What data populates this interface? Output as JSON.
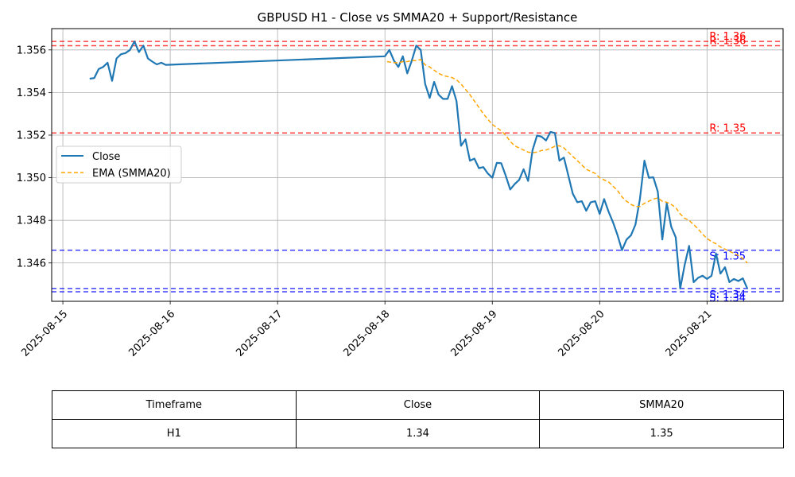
{
  "chart_data": {
    "type": "line",
    "title": "GBPUSD H1 - Close vs SMMA20 + Support/Resistance",
    "xlabel": "",
    "ylabel": "",
    "grid": true,
    "legend_placement": "center-left",
    "x_ticks": [
      "2025-08-15",
      "2025-08-16",
      "2025-08-17",
      "2025-08-18",
      "2025-08-19",
      "2025-08-20",
      "2025-08-21"
    ],
    "y_ticks": [
      "1.346",
      "1.348",
      "1.350",
      "1.352",
      "1.354",
      "1.356"
    ],
    "xlim": [
      "2025-08-14 21:30",
      "2025-08-21 17:00"
    ],
    "ylim": [
      1.3442,
      1.357
    ],
    "series": [
      {
        "name": "Close",
        "color": "#1f77b4",
        "style": "solid",
        "points": [
          [
            "2025-08-15 06:00",
            1.35465
          ],
          [
            "2025-08-15 07:00",
            1.35468
          ],
          [
            "2025-08-15 08:00",
            1.3551
          ],
          [
            "2025-08-15 09:00",
            1.3552
          ],
          [
            "2025-08-15 10:00",
            1.3554
          ],
          [
            "2025-08-15 11:00",
            1.35455
          ],
          [
            "2025-08-15 12:00",
            1.3556
          ],
          [
            "2025-08-15 13:00",
            1.3558
          ],
          [
            "2025-08-15 14:00",
            1.35585
          ],
          [
            "2025-08-15 15:00",
            1.356
          ],
          [
            "2025-08-15 16:00",
            1.3564
          ],
          [
            "2025-08-15 17:00",
            1.3559
          ],
          [
            "2025-08-15 18:00",
            1.3562
          ],
          [
            "2025-08-15 19:00",
            1.3556
          ],
          [
            "2025-08-15 20:00",
            1.35545
          ],
          [
            "2025-08-15 21:00",
            1.35532
          ],
          [
            "2025-08-15 22:00",
            1.3554
          ],
          [
            "2025-08-15 23:00",
            1.3553
          ],
          [
            "2025-08-18 00:00",
            1.3557
          ],
          [
            "2025-08-18 01:00",
            1.356
          ],
          [
            "2025-08-18 02:00",
            1.3555
          ],
          [
            "2025-08-18 03:00",
            1.3552
          ],
          [
            "2025-08-18 04:00",
            1.3557
          ],
          [
            "2025-08-18 05:00",
            1.3549
          ],
          [
            "2025-08-18 06:00",
            1.3555
          ],
          [
            "2025-08-18 07:00",
            1.3562
          ],
          [
            "2025-08-18 08:00",
            1.356
          ],
          [
            "2025-08-18 09:00",
            1.3544
          ],
          [
            "2025-08-18 10:00",
            1.35375
          ],
          [
            "2025-08-18 11:00",
            1.3545
          ],
          [
            "2025-08-18 12:00",
            1.3539
          ],
          [
            "2025-08-18 13:00",
            1.3537
          ],
          [
            "2025-08-18 14:00",
            1.3537
          ],
          [
            "2025-08-18 15:00",
            1.3543
          ],
          [
            "2025-08-18 16:00",
            1.3536
          ],
          [
            "2025-08-18 17:00",
            1.3515
          ],
          [
            "2025-08-18 18:00",
            1.3518
          ],
          [
            "2025-08-18 19:00",
            1.3508
          ],
          [
            "2025-08-18 20:00",
            1.3509
          ],
          [
            "2025-08-18 21:00",
            1.35045
          ],
          [
            "2025-08-18 22:00",
            1.3505
          ],
          [
            "2025-08-18 23:00",
            1.3502
          ],
          [
            "2025-08-19 00:00",
            1.35
          ],
          [
            "2025-08-19 01:00",
            1.3507
          ],
          [
            "2025-08-19 02:00",
            1.35068
          ],
          [
            "2025-08-19 03:00",
            1.3501
          ],
          [
            "2025-08-19 04:00",
            1.34945
          ],
          [
            "2025-08-19 05:00",
            1.3497
          ],
          [
            "2025-08-19 06:00",
            1.3499
          ],
          [
            "2025-08-19 07:00",
            1.3504
          ],
          [
            "2025-08-19 08:00",
            1.34985
          ],
          [
            "2025-08-19 09:00",
            1.3513
          ],
          [
            "2025-08-19 10:00",
            1.35198
          ],
          [
            "2025-08-19 11:00",
            1.35193
          ],
          [
            "2025-08-19 12:00",
            1.35175
          ],
          [
            "2025-08-19 13:00",
            1.35215
          ],
          [
            "2025-08-19 14:00",
            1.3521
          ],
          [
            "2025-08-19 15:00",
            1.3508
          ],
          [
            "2025-08-19 16:00",
            1.35095
          ],
          [
            "2025-08-19 17:00",
            1.3501
          ],
          [
            "2025-08-19 18:00",
            1.34925
          ],
          [
            "2025-08-19 19:00",
            1.34885
          ],
          [
            "2025-08-19 20:00",
            1.3489
          ],
          [
            "2025-08-19 21:00",
            1.34845
          ],
          [
            "2025-08-19 22:00",
            1.34885
          ],
          [
            "2025-08-19 23:00",
            1.3489
          ],
          [
            "2025-08-20 00:00",
            1.3483
          ],
          [
            "2025-08-20 01:00",
            1.349
          ],
          [
            "2025-08-20 02:00",
            1.3484
          ],
          [
            "2025-08-20 03:00",
            1.3479
          ],
          [
            "2025-08-20 04:00",
            1.3473
          ],
          [
            "2025-08-20 05:00",
            1.3466
          ],
          [
            "2025-08-20 06:00",
            1.3471
          ],
          [
            "2025-08-20 07:00",
            1.3473
          ],
          [
            "2025-08-20 08:00",
            1.3478
          ],
          [
            "2025-08-20 09:00",
            1.349
          ],
          [
            "2025-08-20 10:00",
            1.3508
          ],
          [
            "2025-08-20 11:00",
            1.35
          ],
          [
            "2025-08-20 12:00",
            1.35002
          ],
          [
            "2025-08-20 13:00",
            1.34935
          ],
          [
            "2025-08-20 14:00",
            1.3471
          ],
          [
            "2025-08-20 15:00",
            1.3488
          ],
          [
            "2025-08-20 16:00",
            1.3477
          ],
          [
            "2025-08-20 17:00",
            1.3472
          ],
          [
            "2025-08-20 18:00",
            1.3448
          ],
          [
            "2025-08-20 19:00",
            1.3459
          ],
          [
            "2025-08-20 20:00",
            1.3468
          ],
          [
            "2025-08-20 21:00",
            1.3451
          ],
          [
            "2025-08-20 22:00",
            1.3453
          ],
          [
            "2025-08-20 23:00",
            1.3454
          ],
          [
            "2025-08-21 00:00",
            1.34525
          ],
          [
            "2025-08-21 01:00",
            1.3454
          ],
          [
            "2025-08-21 02:00",
            1.34645
          ],
          [
            "2025-08-21 03:00",
            1.3455
          ],
          [
            "2025-08-21 04:00",
            1.3458
          ],
          [
            "2025-08-21 05:00",
            1.3451
          ],
          [
            "2025-08-21 06:00",
            1.34525
          ],
          [
            "2025-08-21 07:00",
            1.34515
          ],
          [
            "2025-08-21 08:00",
            1.34528
          ],
          [
            "2025-08-21 09:00",
            1.3448
          ]
        ]
      },
      {
        "name": "EMA (SMMA20)",
        "color": "#ffa500",
        "style": "dashed",
        "points": [
          [
            "2025-08-18 00:30",
            1.35545
          ],
          [
            "2025-08-18 02:00",
            1.3554
          ],
          [
            "2025-08-18 03:00",
            1.3554
          ],
          [
            "2025-08-18 04:00",
            1.35545
          ],
          [
            "2025-08-18 05:00",
            1.35545
          ],
          [
            "2025-08-18 06:00",
            1.3555
          ],
          [
            "2025-08-18 07:00",
            1.3555
          ],
          [
            "2025-08-18 08:00",
            1.35555
          ],
          [
            "2025-08-18 09:00",
            1.3553
          ],
          [
            "2025-08-18 10:00",
            1.3552
          ],
          [
            "2025-08-18 11:00",
            1.35505
          ],
          [
            "2025-08-18 12:00",
            1.3549
          ],
          [
            "2025-08-18 13:00",
            1.3548
          ],
          [
            "2025-08-18 14:00",
            1.35475
          ],
          [
            "2025-08-18 15:00",
            1.3547
          ],
          [
            "2025-08-18 16:00",
            1.3546
          ],
          [
            "2025-08-18 17:00",
            1.3544
          ],
          [
            "2025-08-18 18:00",
            1.35415
          ],
          [
            "2025-08-18 19:00",
            1.3539
          ],
          [
            "2025-08-18 20:00",
            1.3536
          ],
          [
            "2025-08-18 21:00",
            1.3533
          ],
          [
            "2025-08-18 22:00",
            1.353
          ],
          [
            "2025-08-18 23:00",
            1.35275
          ],
          [
            "2025-08-19 00:00",
            1.3525
          ],
          [
            "2025-08-19 01:00",
            1.35235
          ],
          [
            "2025-08-19 02:00",
            1.3522
          ],
          [
            "2025-08-19 03:00",
            1.352
          ],
          [
            "2025-08-19 04:00",
            1.3517
          ],
          [
            "2025-08-19 05:00",
            1.3515
          ],
          [
            "2025-08-19 06:00",
            1.3514
          ],
          [
            "2025-08-19 07:00",
            1.3513
          ],
          [
            "2025-08-19 08:00",
            1.3512
          ],
          [
            "2025-08-19 09:00",
            1.35118
          ],
          [
            "2025-08-19 10:00",
            1.3512
          ],
          [
            "2025-08-19 11:00",
            1.35128
          ],
          [
            "2025-08-19 12:00",
            1.3513
          ],
          [
            "2025-08-19 13:00",
            1.35138
          ],
          [
            "2025-08-19 14:00",
            1.35148
          ],
          [
            "2025-08-19 15:00",
            1.3515
          ],
          [
            "2025-08-19 16:00",
            1.3514
          ],
          [
            "2025-08-19 17:00",
            1.3512
          ],
          [
            "2025-08-19 18:00",
            1.351
          ],
          [
            "2025-08-19 19:00",
            1.3508
          ],
          [
            "2025-08-19 20:00",
            1.3506
          ],
          [
            "2025-08-19 21:00",
            1.3504
          ],
          [
            "2025-08-19 22:00",
            1.3503
          ],
          [
            "2025-08-19 23:00",
            1.3502
          ],
          [
            "2025-08-20 00:00",
            1.35
          ],
          [
            "2025-08-20 01:00",
            1.3499
          ],
          [
            "2025-08-20 02:00",
            1.3498
          ],
          [
            "2025-08-20 03:00",
            1.3496
          ],
          [
            "2025-08-20 04:00",
            1.3494
          ],
          [
            "2025-08-20 05:00",
            1.3491
          ],
          [
            "2025-08-20 06:00",
            1.3489
          ],
          [
            "2025-08-20 07:00",
            1.34875
          ],
          [
            "2025-08-20 08:00",
            1.34865
          ],
          [
            "2025-08-20 09:00",
            1.34865
          ],
          [
            "2025-08-20 10:00",
            1.3488
          ],
          [
            "2025-08-20 11:00",
            1.3489
          ],
          [
            "2025-08-20 12:00",
            1.349
          ],
          [
            "2025-08-20 13:00",
            1.34905
          ],
          [
            "2025-08-20 14:00",
            1.3489
          ],
          [
            "2025-08-20 15:00",
            1.34885
          ],
          [
            "2025-08-20 16:00",
            1.34875
          ],
          [
            "2025-08-20 17:00",
            1.3486
          ],
          [
            "2025-08-20 18:00",
            1.3483
          ],
          [
            "2025-08-20 19:00",
            1.3481
          ],
          [
            "2025-08-20 20:00",
            1.348
          ],
          [
            "2025-08-20 21:00",
            1.3478
          ],
          [
            "2025-08-20 22:00",
            1.3476
          ],
          [
            "2025-08-20 23:00",
            1.34735
          ],
          [
            "2025-08-21 00:00",
            1.34715
          ],
          [
            "2025-08-21 01:00",
            1.347
          ],
          [
            "2025-08-21 02:00",
            1.3469
          ],
          [
            "2025-08-21 03:00",
            1.34675
          ],
          [
            "2025-08-21 04:00",
            1.34665
          ],
          [
            "2025-08-21 05:00",
            1.34655
          ],
          [
            "2025-08-21 06:00",
            1.34645
          ],
          [
            "2025-08-21 07:00",
            1.34635
          ],
          [
            "2025-08-21 08:00",
            1.3462
          ],
          [
            "2025-08-21 09:00",
            1.346
          ]
        ]
      }
    ],
    "resistance_levels": [
      {
        "label": "R: 1.36",
        "value": 1.3564,
        "color": "#ff0000"
      },
      {
        "label": "R: 1.36",
        "value": 1.3562,
        "color": "#ff0000"
      },
      {
        "label": "R: 1.35",
        "value": 1.3521,
        "color": "#ff0000"
      }
    ],
    "support_levels": [
      {
        "label": "S: 1.35",
        "value": 1.3466,
        "color": "#0000ff"
      },
      {
        "label": "S: 1.34",
        "value": 1.3448,
        "color": "#0000ff"
      },
      {
        "label": "S: 1.34",
        "value": 1.34465,
        "color": "#0000ff"
      }
    ],
    "table": {
      "headers": [
        "Timeframe",
        "Close",
        "SMMA20"
      ],
      "rows": [
        [
          "H1",
          "1.34",
          "1.35"
        ]
      ]
    }
  }
}
